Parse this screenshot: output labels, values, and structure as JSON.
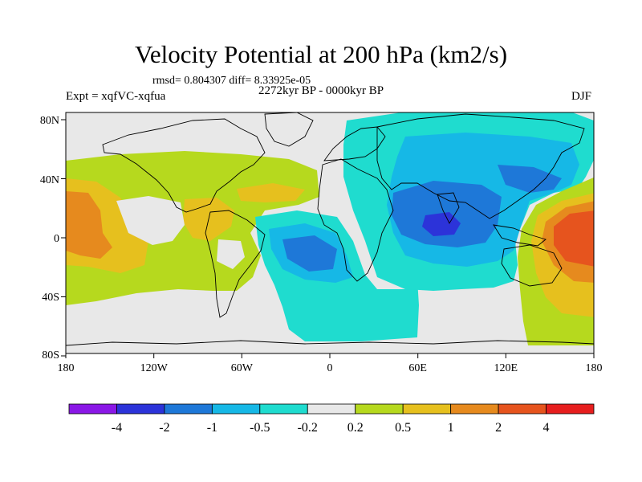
{
  "title": "Velocity Potential at 200 hPa (km2/s)",
  "stats_line": "rmsd= 0.804307 diff= 8.33925e-05",
  "period": "2272kyr BP - 0000kyr BP",
  "experiment": "Expt = xqfVC-xqfua",
  "season": "DJF",
  "map": {
    "lon_ticks": [
      "180",
      "120W",
      "60W",
      "0",
      "60E",
      "120E",
      "180"
    ],
    "lat_ticks": [
      "80N",
      "40N",
      "0",
      "40S",
      "80S"
    ]
  },
  "colorbar": {
    "labels": [
      "-4",
      "-2",
      "-1",
      "-0.5",
      "-0.2",
      "0.2",
      "0.5",
      "1",
      "2",
      "4"
    ],
    "colors": [
      "#8a17e6",
      "#2c33d9",
      "#1e78d8",
      "#16b8e6",
      "#1fdccf",
      "#e8e8e8",
      "#b6d91e",
      "#e6c01e",
      "#e68a1e",
      "#e6541e",
      "#e61e1e"
    ]
  }
}
